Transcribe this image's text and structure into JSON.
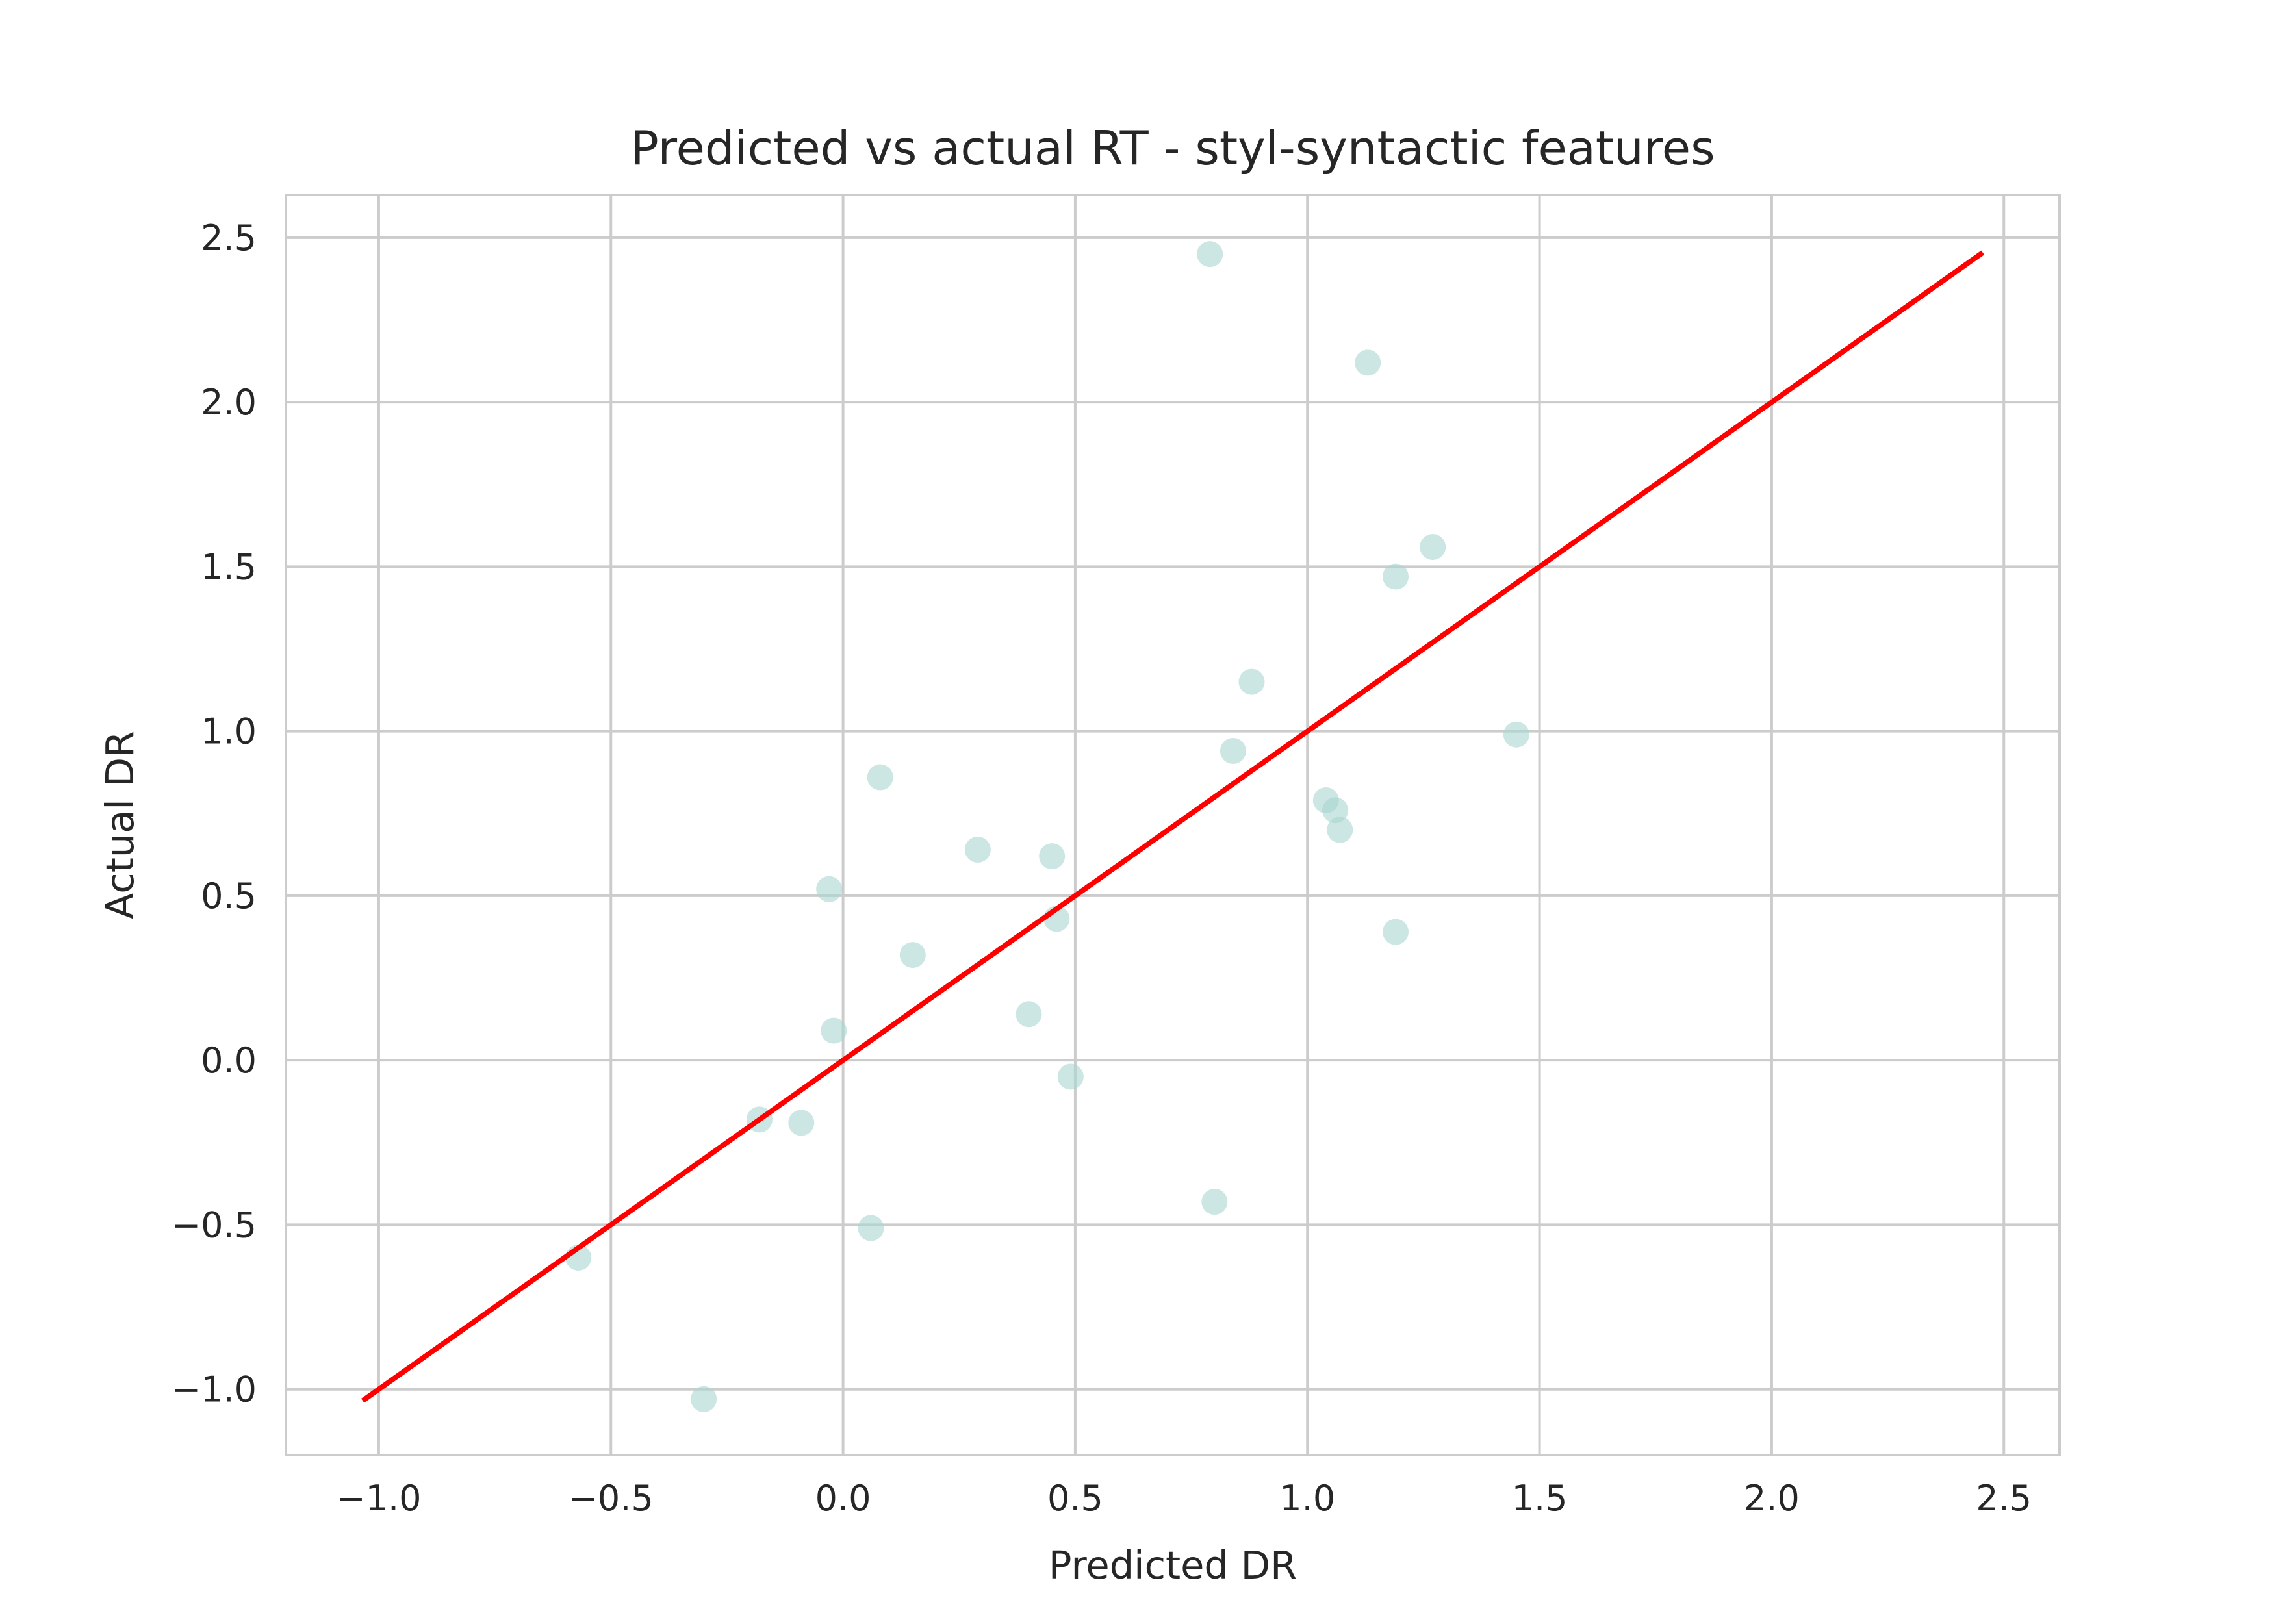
{
  "chart_data": {
    "type": "scatter",
    "title": "Predicted vs actual RT - styl-syntactic features",
    "xlabel": "Predicted DR",
    "ylabel": "Actual DR",
    "xlim": [
      -1.2,
      2.62
    ],
    "ylim": [
      -1.2,
      2.63
    ],
    "grid": true,
    "x_ticks": [
      -1.0,
      -0.5,
      0.0,
      0.5,
      1.0,
      1.5,
      2.0,
      2.5
    ],
    "y_ticks": [
      -1.0,
      -0.5,
      0.0,
      0.5,
      1.0,
      1.5,
      2.0,
      2.5
    ],
    "x_tick_labels": [
      "−1.0",
      "−0.5",
      "0.0",
      "0.5",
      "1.0",
      "1.5",
      "2.0",
      "2.5"
    ],
    "y_tick_labels": [
      "−1.0",
      "−0.5",
      "0.0",
      "0.5",
      "1.0",
      "1.5",
      "2.0",
      "2.5"
    ],
    "points": {
      "x": [
        0.79,
        1.13,
        1.27,
        1.19,
        0.88,
        1.45,
        0.84,
        0.08,
        1.04,
        1.06,
        1.07,
        0.29,
        0.45,
        -0.03,
        0.46,
        1.19,
        0.15,
        0.4,
        -0.02,
        0.49,
        -0.18,
        -0.09,
        0.8,
        0.06,
        -0.57,
        -0.3
      ],
      "y": [
        2.45,
        2.12,
        1.56,
        1.47,
        1.15,
        0.99,
        0.94,
        0.86,
        0.79,
        0.76,
        0.7,
        0.64,
        0.62,
        0.52,
        0.43,
        0.39,
        0.32,
        0.14,
        0.09,
        -0.05,
        -0.18,
        -0.19,
        -0.43,
        -0.51,
        -0.6,
        -1.03
      ],
      "color": "#a8d5d1"
    },
    "reference_line": {
      "x": [
        -1.03,
        2.45
      ],
      "y": [
        -1.03,
        2.45
      ],
      "color": "#ff0000"
    },
    "colors": {
      "grid": "#cccccc",
      "frame": "#cccccc",
      "text": "#262626"
    }
  }
}
